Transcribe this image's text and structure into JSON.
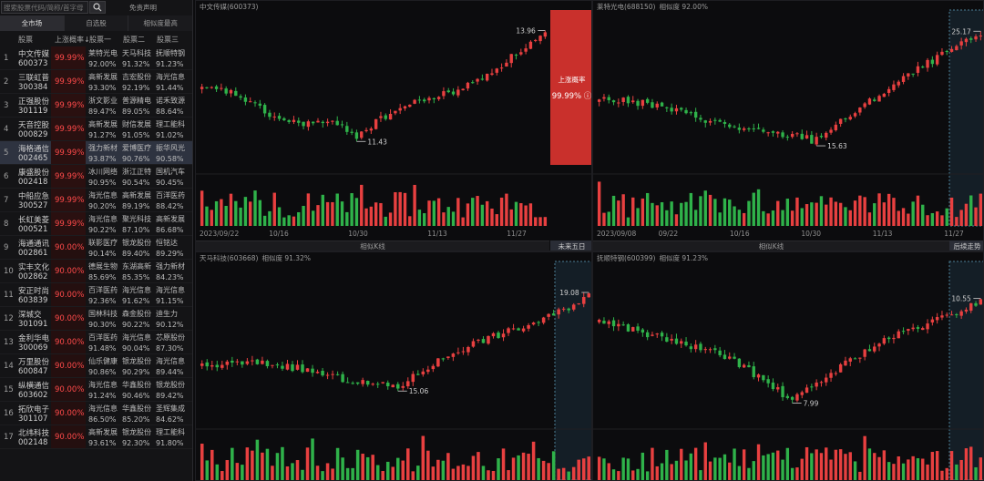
{
  "search": {
    "placeholder": "搜索股票代码/简称/首字母"
  },
  "header": {
    "disclaimer": "免责声明"
  },
  "tabs": [
    {
      "label": "全市场",
      "active": true
    },
    {
      "label": "自选股",
      "active": false
    },
    {
      "label": "相似度最高",
      "active": false
    }
  ],
  "table": {
    "columns": [
      "股票",
      "上涨概率↓",
      "股票一",
      "股票二",
      "股票三"
    ],
    "rows": [
      {
        "idx": "1",
        "name": "中文传媒",
        "code": "600373",
        "prob": "99.99%",
        "s1": "莱特光电",
        "p1": "92.00%",
        "s2": "天马科技",
        "p2": "91.32%",
        "s3": "抚顺特钢",
        "p3": "91.23%"
      },
      {
        "idx": "2",
        "name": "三联虹普",
        "code": "300384",
        "prob": "99.99%",
        "s1": "高新发展",
        "p1": "93.30%",
        "s2": "吉宏股份",
        "p2": "92.19%",
        "s3": "海光信息",
        "p3": "91.44%"
      },
      {
        "idx": "3",
        "name": "正强股份",
        "code": "301119",
        "prob": "99.99%",
        "s1": "浙文影业",
        "p1": "89.47%",
        "s2": "普源精电",
        "p2": "89.05%",
        "s3": "诺禾致源",
        "p3": "88.64%"
      },
      {
        "idx": "4",
        "name": "天音控股",
        "code": "000829",
        "prob": "99.99%",
        "s1": "高新发展",
        "p1": "91.27%",
        "s2": "财信发展",
        "p2": "91.05%",
        "s3": "理工能科",
        "p3": "91.02%"
      },
      {
        "idx": "5",
        "name": "海格通信",
        "code": "002465",
        "prob": "99.99%",
        "s1": "强力新材",
        "p1": "93.87%",
        "s2": "爱博医疗",
        "p2": "90.76%",
        "s3": "振华风光",
        "p3": "90.58%"
      },
      {
        "idx": "6",
        "name": "康盛股份",
        "code": "002418",
        "prob": "99.99%",
        "s1": "冰川网络",
        "p1": "90.95%",
        "s2": "浙江正特",
        "p2": "90.54%",
        "s3": "国机汽车",
        "p3": "90.45%"
      },
      {
        "idx": "7",
        "name": "中船应急",
        "code": "300527",
        "prob": "99.99%",
        "s1": "海光信息",
        "p1": "90.20%",
        "s2": "高新发展",
        "p2": "89.19%",
        "s3": "百洋医药",
        "p3": "88.42%"
      },
      {
        "idx": "8",
        "name": "长虹美菱",
        "code": "000521",
        "prob": "99.99%",
        "s1": "海光信息",
        "p1": "90.22%",
        "s2": "聚光科技",
        "p2": "87.10%",
        "s3": "高新发展",
        "p3": "86.68%"
      },
      {
        "idx": "9",
        "name": "海通通讯",
        "code": "002861",
        "prob": "90.00%",
        "s1": "联影医疗",
        "p1": "90.14%",
        "s2": "银龙股份",
        "p2": "89.40%",
        "s3": "恒铭达",
        "p3": "89.29%"
      },
      {
        "idx": "10",
        "name": "实丰文化",
        "code": "002862",
        "prob": "90.00%",
        "s1": "德展生物",
        "p1": "85.69%",
        "s2": "东湖高新",
        "p2": "85.35%",
        "s3": "强力新材",
        "p3": "84.23%"
      },
      {
        "idx": "11",
        "name": "安正时尚",
        "code": "603839",
        "prob": "90.00%",
        "s1": "百洋医药",
        "p1": "92.36%",
        "s2": "海光信息",
        "p2": "91.62%",
        "s3": "海光信息",
        "p3": "91.15%"
      },
      {
        "idx": "12",
        "name": "深城交",
        "code": "301091",
        "prob": "90.00%",
        "s1": "国林科技",
        "p1": "90.30%",
        "s2": "森金股份",
        "p2": "90.22%",
        "s3": "迪生力",
        "p3": "90.12%"
      },
      {
        "idx": "13",
        "name": "金利华电",
        "code": "300069",
        "prob": "90.00%",
        "s1": "百洋医药",
        "p1": "91.48%",
        "s2": "海光信息",
        "p2": "90.04%",
        "s3": "芯原股份",
        "p3": "87.30%"
      },
      {
        "idx": "14",
        "name": "万里股份",
        "code": "600847",
        "prob": "90.00%",
        "s1": "仙乐健康",
        "p1": "90.86%",
        "s2": "银龙股份",
        "p2": "90.29%",
        "s3": "海光信息",
        "p3": "89.44%"
      },
      {
        "idx": "15",
        "name": "纵横通信",
        "code": "603602",
        "prob": "90.00%",
        "s1": "海光信息",
        "p1": "91.24%",
        "s2": "华鑫股份",
        "p2": "90.46%",
        "s3": "银龙股份",
        "p3": "89.42%"
      },
      {
        "idx": "16",
        "name": "拓欣电子",
        "code": "301107",
        "prob": "90.00%",
        "s1": "海光信息",
        "p1": "86.50%",
        "s2": "华鑫股份",
        "p2": "85.20%",
        "s3": "圣辉集成",
        "p3": "84.62%"
      },
      {
        "idx": "17",
        "name": "北纬科技",
        "code": "002148",
        "prob": "90.00%",
        "s1": "高新发展",
        "p1": "93.61%",
        "s2": "银龙股份",
        "p2": "92.30%",
        "s3": "理工能科",
        "p3": "91.80%"
      }
    ]
  },
  "colors": {
    "up": "#e84040",
    "down": "#2fb24a",
    "accent": "#c9302c",
    "highlight": "#1c2d3a"
  },
  "main_panel": {
    "title": "中文传媒(600373)",
    "x_labels": [
      "2023/09/22",
      "10/16",
      "10/30",
      "11/13",
      "11/27"
    ],
    "high_label": "13.96",
    "low_label": "11.43",
    "footer_label": "相似K线",
    "future_button": "未来五日",
    "prob_title": "上涨概率",
    "prob_value": "99.99% ⓘ"
  },
  "panels": [
    {
      "title": "莱特光电(688150)",
      "sim": "相似度 92.00%",
      "x_labels": [
        "2023/09/08",
        "09/22",
        "10/16",
        "10/30",
        "11/13",
        "11/27"
      ],
      "high_label": "25.17",
      "low_label": "15.63",
      "footer_label": "相似K线",
      "future_button": "后续走势"
    },
    {
      "title": "天马科技(603668)",
      "sim": "相似度 91.32%",
      "high_label": "19.08",
      "low_label": "15.06"
    },
    {
      "title": "抚顺特钢(600399)",
      "sim": "相似度 91.23%",
      "high_label": "10.55",
      "low_label": "7.99"
    }
  ]
}
